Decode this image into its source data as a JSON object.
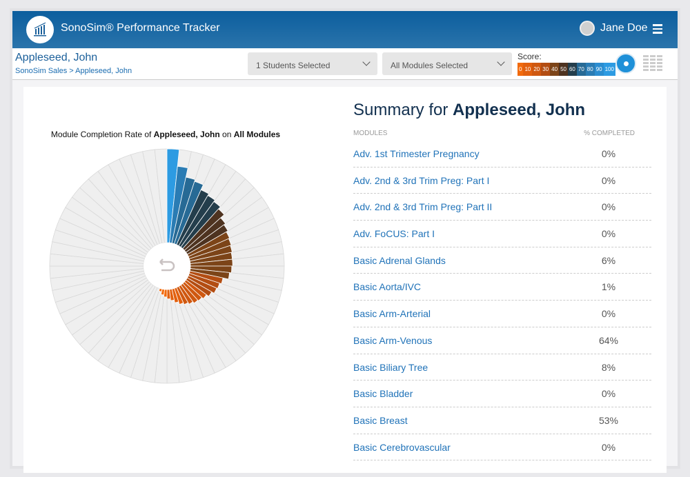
{
  "header": {
    "title": "SonoSim® Performance Tracker",
    "user": "Jane Doe"
  },
  "subheader": {
    "student": "Appleseed, John",
    "breadcrumb": "SonoSim Sales > Appleseed, John",
    "students_dropdown": "1 Students Selected",
    "modules_dropdown": "All Modules Selected",
    "score_label": "Score:"
  },
  "score_scale": [
    {
      "label": "0",
      "color": "#f26a0c"
    },
    {
      "label": "10",
      "color": "#e2600e"
    },
    {
      "label": "20",
      "color": "#cf5810"
    },
    {
      "label": "30",
      "color": "#b34d12"
    },
    {
      "label": "40",
      "color": "#7c4418"
    },
    {
      "label": "50",
      "color": "#4e3320"
    },
    {
      "label": "60",
      "color": "#243e4c"
    },
    {
      "label": "70",
      "color": "#276a95"
    },
    {
      "label": "80",
      "color": "#2a7cb4"
    },
    {
      "label": "90",
      "color": "#2b8dd0"
    },
    {
      "label": "100",
      "color": "#2d9be2"
    }
  ],
  "chart_data": {
    "type": "radial-bar",
    "title_parts": [
      "Module Completion Rate of ",
      "Appleseed, John",
      " on ",
      "All Modules"
    ],
    "segments": 60,
    "range": [
      0,
      100
    ],
    "values": [
      100,
      82,
      72,
      70,
      64,
      62,
      60,
      57,
      52,
      50,
      48,
      47,
      46,
      45,
      45,
      44,
      42,
      36,
      34,
      33,
      30,
      27,
      25,
      24,
      22,
      20,
      18,
      15,
      12,
      10,
      8,
      6,
      3,
      0,
      0,
      0,
      0,
      0,
      0,
      0,
      0,
      0,
      0,
      0,
      0,
      0,
      0,
      0,
      0,
      0,
      0,
      0,
      0,
      0,
      0,
      0,
      0,
      0,
      0,
      0
    ]
  },
  "summary": {
    "prefix": "Summary for ",
    "name": "Appleseed, John",
    "col_modules": "MODULES",
    "col_completed": "% COMPLETED",
    "rows": [
      {
        "module": "Adv. 1st Trimester Pregnancy",
        "pct": "0%"
      },
      {
        "module": "Adv. 2nd & 3rd Trim Preg: Part I",
        "pct": "0%"
      },
      {
        "module": "Adv. 2nd & 3rd Trim Preg: Part II",
        "pct": "0%"
      },
      {
        "module": "Adv. FoCUS: Part I",
        "pct": "0%"
      },
      {
        "module": "Basic Adrenal Glands",
        "pct": "6%"
      },
      {
        "module": "Basic Aorta/IVC",
        "pct": "1%"
      },
      {
        "module": "Basic Arm-Arterial",
        "pct": "0%"
      },
      {
        "module": "Basic Arm-Venous",
        "pct": "64%"
      },
      {
        "module": "Basic Biliary Tree",
        "pct": "8%"
      },
      {
        "module": "Basic Bladder",
        "pct": "0%"
      },
      {
        "module": "Basic Breast",
        "pct": "53%"
      },
      {
        "module": "Basic Cerebrovascular",
        "pct": "0%"
      }
    ]
  }
}
